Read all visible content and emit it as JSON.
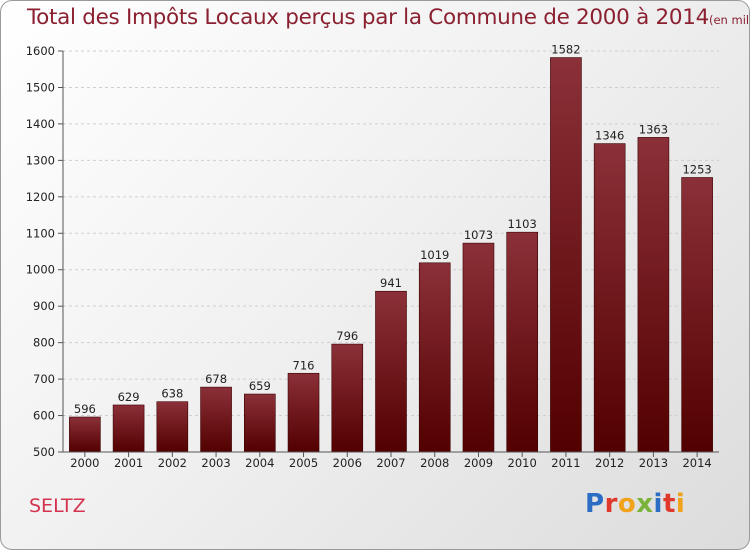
{
  "title": {
    "main": "Total des Impôts Locaux perçus par la Commune de 2000 à 2014",
    "unit": "(en milliers d'€)"
  },
  "commune": "SELTZ",
  "logo": {
    "letters": [
      "P",
      "r",
      "o",
      "x",
      "i",
      "t",
      "i"
    ],
    "colors": [
      "#2b6cc4",
      "#e0392b",
      "#f0a21a",
      "#7ab33a",
      "#2b6cc4",
      "#e0392b",
      "#f0a21a"
    ]
  },
  "colors": {
    "bar_top": "#8b3038",
    "bar_bottom": "#520000",
    "title": "#8a2030",
    "commune": "#d4334f"
  },
  "chart_data": {
    "type": "bar",
    "categories": [
      "2000",
      "2001",
      "2002",
      "2003",
      "2004",
      "2005",
      "2006",
      "2007",
      "2008",
      "2009",
      "2010",
      "2011",
      "2012",
      "2013",
      "2014"
    ],
    "values": [
      596,
      629,
      638,
      678,
      659,
      716,
      796,
      941,
      1019,
      1073,
      1103,
      1582,
      1346,
      1363,
      1253
    ],
    "title": "Total des Impôts Locaux perçus par la Commune de 2000 à 2014",
    "xlabel": "",
    "ylabel": "",
    "ylim": [
      500,
      1600
    ],
    "yticks": [
      500,
      600,
      700,
      800,
      900,
      1000,
      1100,
      1200,
      1300,
      1400,
      1500,
      1600
    ],
    "grid": true,
    "data_labels": true
  }
}
